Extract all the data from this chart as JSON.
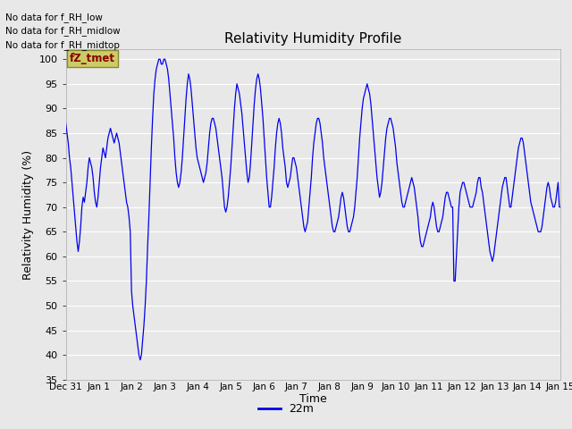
{
  "title": "Relativity Humidity Profile",
  "ylabel": "Relativity Humidity (%)",
  "xlabel": "Time",
  "legend_label": "22m",
  "no_data_texts": [
    "No data for f_RH_low",
    "No data for f_RH_midlow",
    "No data for f_RH_midtop"
  ],
  "tooltip_text": "fZ_tmet",
  "ylim": [
    35,
    102
  ],
  "yticks": [
    35,
    40,
    45,
    50,
    55,
    60,
    65,
    70,
    75,
    80,
    85,
    90,
    95,
    100
  ],
  "line_color": "#0000ee",
  "fig_facecolor": "#e8e8e8",
  "axes_facecolor": "#e8e8e8",
  "grid_color": "#ffffff",
  "x_tick_labels": [
    "Dec 31",
    "Jan 1",
    "Jan 2",
    "Jan 3",
    "Jan 4",
    "Jan 5",
    "Jan 6",
    "Jan 7",
    "Jan 8",
    "Jan 9",
    "Jan 10",
    "Jan 11",
    "Jan 12",
    "Jan 13",
    "Jan 14",
    "Jan 15"
  ],
  "values": [
    87,
    85,
    83,
    80,
    78,
    75,
    72,
    69,
    66,
    63,
    61,
    63,
    66,
    70,
    72,
    71,
    73,
    75,
    78,
    80,
    79,
    78,
    76,
    73,
    71,
    70,
    72,
    75,
    78,
    80,
    82,
    81,
    80,
    82,
    84,
    85,
    86,
    85,
    84,
    83,
    84,
    85,
    84,
    83,
    81,
    79,
    77,
    75,
    73,
    71,
    70,
    68,
    65,
    53,
    50,
    48,
    46,
    44,
    42,
    40,
    39,
    40,
    43,
    46,
    50,
    55,
    62,
    68,
    75,
    82,
    88,
    93,
    96,
    98,
    99,
    100,
    100,
    99,
    99,
    100,
    100,
    99,
    98,
    96,
    93,
    90,
    87,
    84,
    80,
    77,
    75,
    74,
    75,
    77,
    80,
    84,
    88,
    92,
    95,
    97,
    96,
    94,
    91,
    88,
    85,
    82,
    80,
    79,
    78,
    77,
    76,
    75,
    76,
    77,
    79,
    82,
    85,
    87,
    88,
    88,
    87,
    86,
    84,
    82,
    80,
    78,
    76,
    73,
    70,
    69,
    70,
    72,
    75,
    78,
    82,
    86,
    90,
    93,
    95,
    94,
    93,
    91,
    89,
    86,
    83,
    80,
    77,
    75,
    76,
    79,
    83,
    87,
    91,
    94,
    96,
    97,
    96,
    94,
    91,
    88,
    84,
    80,
    76,
    73,
    70,
    70,
    72,
    75,
    78,
    82,
    85,
    87,
    88,
    87,
    85,
    82,
    80,
    78,
    75,
    74,
    75,
    76,
    78,
    80,
    80,
    79,
    78,
    76,
    74,
    72,
    70,
    68,
    66,
    65,
    66,
    67,
    70,
    73,
    76,
    80,
    83,
    85,
    87,
    88,
    88,
    87,
    85,
    83,
    80,
    78,
    76,
    74,
    72,
    70,
    68,
    66,
    65,
    65,
    66,
    67,
    68,
    70,
    72,
    73,
    72,
    70,
    68,
    66,
    65,
    65,
    66,
    67,
    68,
    70,
    73,
    76,
    80,
    84,
    87,
    90,
    92,
    93,
    94,
    95,
    94,
    93,
    91,
    88,
    85,
    82,
    79,
    76,
    74,
    72,
    73,
    75,
    78,
    81,
    84,
    86,
    87,
    88,
    88,
    87,
    86,
    84,
    82,
    79,
    77,
    75,
    73,
    71,
    70,
    70,
    71,
    72,
    73,
    74,
    75,
    76,
    75,
    74,
    72,
    70,
    68,
    65,
    63,
    62,
    62,
    63,
    64,
    65,
    66,
    67,
    68,
    70,
    71,
    70,
    68,
    66,
    65,
    65,
    66,
    67,
    68,
    70,
    72,
    73,
    73,
    72,
    71,
    70,
    70,
    55,
    55,
    60,
    65,
    70,
    73,
    74,
    75,
    75,
    74,
    73,
    72,
    71,
    70,
    70,
    70,
    71,
    72,
    73,
    75,
    76,
    76,
    74,
    73,
    71,
    69,
    67,
    65,
    63,
    61,
    60,
    59,
    60,
    62,
    64,
    66,
    68,
    70,
    72,
    74,
    75,
    76,
    76,
    74,
    72,
    70,
    70,
    72,
    74,
    76,
    78,
    80,
    82,
    83,
    84,
    84,
    83,
    81,
    79,
    77,
    75,
    73,
    71,
    70,
    69,
    68,
    67,
    66,
    65,
    65,
    65,
    66,
    68,
    70,
    72,
    74,
    75,
    74,
    72,
    71,
    70,
    70,
    71,
    73,
    75,
    70,
    70
  ]
}
